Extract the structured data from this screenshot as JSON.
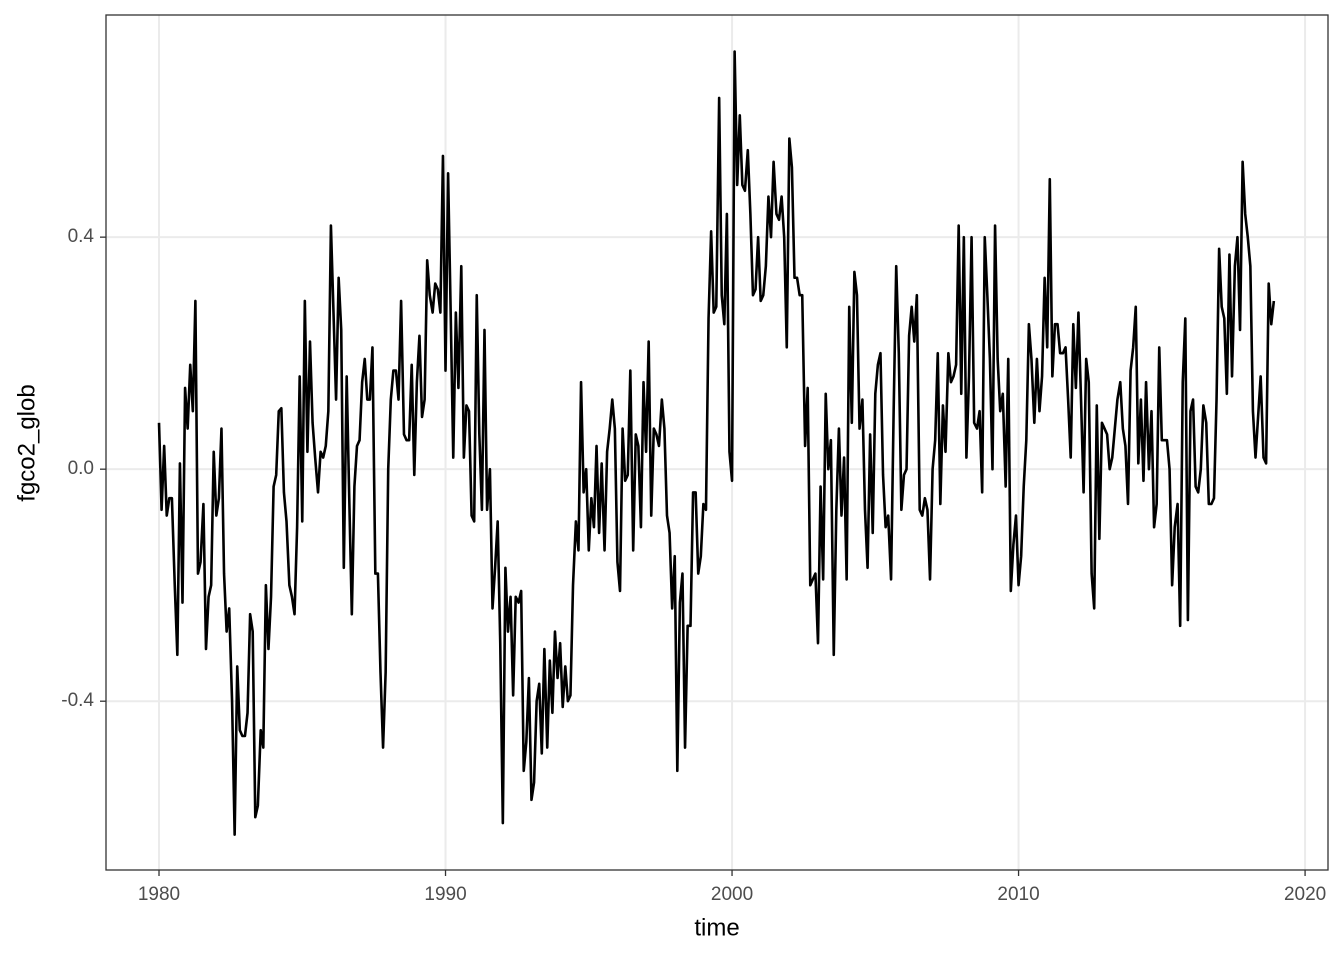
{
  "chart_data": {
    "type": "line",
    "xlabel": "time",
    "ylabel": "fgco2_glob",
    "color": "#000000",
    "grid": true,
    "xlim": [
      1978.15,
      2020.8
    ],
    "ylim": [
      -0.691,
      0.783
    ],
    "xticks": [
      1980,
      1990,
      2000,
      2010,
      2020
    ],
    "yticks": [
      -0.4,
      {
        "value": 0,
        "label": "0.0"
      },
      0.4
    ],
    "x": [
      1980,
      1980.09,
      1980.18,
      1980.27,
      1980.36,
      1980.45,
      1980.55,
      1980.64,
      1980.73,
      1980.82,
      1980.91,
      1981,
      1981.09,
      1981.18,
      1981.27,
      1981.36,
      1981.45,
      1981.55,
      1981.64,
      1981.73,
      1981.82,
      1981.91,
      1982,
      1982.09,
      1982.18,
      1982.27,
      1982.36,
      1982.45,
      1982.55,
      1982.64,
      1982.73,
      1982.82,
      1982.91,
      1983,
      1983.09,
      1983.18,
      1983.27,
      1983.36,
      1983.45,
      1983.55,
      1983.64,
      1983.73,
      1983.82,
      1983.91,
      1984,
      1984.09,
      1984.18,
      1984.27,
      1984.36,
      1984.45,
      1984.55,
      1984.64,
      1984.73,
      1984.82,
      1984.91,
      1985,
      1985.09,
      1985.18,
      1985.27,
      1985.36,
      1985.45,
      1985.55,
      1985.64,
      1985.73,
      1985.82,
      1985.91,
      1986,
      1986.09,
      1986.18,
      1986.27,
      1986.36,
      1986.45,
      1986.55,
      1986.64,
      1986.73,
      1986.82,
      1986.91,
      1987,
      1987.09,
      1987.18,
      1987.27,
      1987.36,
      1987.45,
      1987.55,
      1987.64,
      1987.73,
      1987.82,
      1987.91,
      1988,
      1988.09,
      1988.18,
      1988.27,
      1988.36,
      1988.45,
      1988.55,
      1988.64,
      1988.73,
      1988.82,
      1988.91,
      1989,
      1989.09,
      1989.18,
      1989.27,
      1989.36,
      1989.45,
      1989.55,
      1989.64,
      1989.73,
      1989.82,
      1989.91,
      1990,
      1990.09,
      1990.18,
      1990.27,
      1990.36,
      1990.45,
      1990.55,
      1990.64,
      1990.73,
      1990.82,
      1990.91,
      1991,
      1991.09,
      1991.18,
      1991.27,
      1991.36,
      1991.45,
      1991.55,
      1991.64,
      1991.73,
      1991.82,
      1991.91,
      1992,
      1992.09,
      1992.18,
      1992.27,
      1992.36,
      1992.45,
      1992.55,
      1992.64,
      1992.73,
      1992.82,
      1992.91,
      1993,
      1993.09,
      1993.18,
      1993.27,
      1993.36,
      1993.45,
      1993.55,
      1993.64,
      1993.73,
      1993.82,
      1993.91,
      1994,
      1994.09,
      1994.18,
      1994.27,
      1994.36,
      1994.45,
      1994.55,
      1994.64,
      1994.73,
      1994.82,
      1994.91,
      1995,
      1995.09,
      1995.18,
      1995.27,
      1995.36,
      1995.45,
      1995.55,
      1995.64,
      1995.73,
      1995.82,
      1995.91,
      1996,
      1996.09,
      1996.18,
      1996.27,
      1996.36,
      1996.45,
      1996.55,
      1996.64,
      1996.73,
      1996.82,
      1996.91,
      1997,
      1997.09,
      1997.18,
      1997.27,
      1997.36,
      1997.45,
      1997.55,
      1997.64,
      1997.73,
      1997.82,
      1997.91,
      1998,
      1998.09,
      1998.18,
      1998.27,
      1998.36,
      1998.45,
      1998.55,
      1998.64,
      1998.73,
      1998.82,
      1998.91,
      1999,
      1999.09,
      1999.18,
      1999.27,
      1999.36,
      1999.45,
      1999.55,
      1999.64,
      1999.73,
      1999.82,
      1999.91,
      2000,
      2000.09,
      2000.18,
      2000.27,
      2000.36,
      2000.45,
      2000.55,
      2000.64,
      2000.73,
      2000.82,
      2000.91,
      2001,
      2001.09,
      2001.18,
      2001.27,
      2001.36,
      2001.45,
      2001.55,
      2001.64,
      2001.73,
      2001.82,
      2001.91,
      2002,
      2002.09,
      2002.18,
      2002.27,
      2002.36,
      2002.45,
      2002.55,
      2002.64,
      2002.73,
      2002.82,
      2002.91,
      2003,
      2003.09,
      2003.18,
      2003.27,
      2003.36,
      2003.45,
      2003.55,
      2003.64,
      2003.73,
      2003.82,
      2003.91,
      2004,
      2004.09,
      2004.18,
      2004.27,
      2004.36,
      2004.45,
      2004.55,
      2004.64,
      2004.73,
      2004.82,
      2004.91,
      2005,
      2005.09,
      2005.18,
      2005.27,
      2005.36,
      2005.45,
      2005.55,
      2005.64,
      2005.73,
      2005.82,
      2005.91,
      2006,
      2006.09,
      2006.18,
      2006.27,
      2006.36,
      2006.45,
      2006.55,
      2006.64,
      2006.73,
      2006.82,
      2006.91,
      2007,
      2007.09,
      2007.18,
      2007.27,
      2007.36,
      2007.45,
      2007.55,
      2007.64,
      2007.73,
      2007.82,
      2007.91,
      2008,
      2008.09,
      2008.18,
      2008.27,
      2008.36,
      2008.45,
      2008.55,
      2008.64,
      2008.73,
      2008.82,
      2008.91,
      2009,
      2009.09,
      2009.18,
      2009.27,
      2009.36,
      2009.45,
      2009.55,
      2009.64,
      2009.73,
      2009.82,
      2009.91,
      2010,
      2010.09,
      2010.18,
      2010.27,
      2010.36,
      2010.45,
      2010.55,
      2010.64,
      2010.73,
      2010.82,
      2010.91,
      2011,
      2011.09,
      2011.18,
      2011.27,
      2011.36,
      2011.45,
      2011.55,
      2011.64,
      2011.73,
      2011.82,
      2011.91,
      2012,
      2012.09,
      2012.18,
      2012.27,
      2012.36,
      2012.45,
      2012.55,
      2012.64,
      2012.73,
      2012.82,
      2012.91,
      2013,
      2013.09,
      2013.18,
      2013.27,
      2013.36,
      2013.45,
      2013.55,
      2013.64,
      2013.73,
      2013.82,
      2013.91,
      2014,
      2014.09,
      2014.18,
      2014.27,
      2014.36,
      2014.45,
      2014.55,
      2014.64,
      2014.73,
      2014.82,
      2014.91,
      2015,
      2015.09,
      2015.18,
      2015.27,
      2015.36,
      2015.45,
      2015.55,
      2015.64,
      2015.73,
      2015.82,
      2015.91,
      2016,
      2016.09,
      2016.18,
      2016.27,
      2016.36,
      2016.45,
      2016.55,
      2016.64,
      2016.73,
      2016.82,
      2016.91,
      2017,
      2017.09,
      2017.18,
      2017.27,
      2017.36,
      2017.45,
      2017.55,
      2017.64,
      2017.73,
      2017.82,
      2017.91,
      2018,
      2018.09,
      2018.18,
      2018.27,
      2018.36,
      2018.45,
      2018.55,
      2018.64,
      2018.73,
      2018.82,
      2018.91
    ],
    "values": [
      0.08,
      -0.07,
      0.04,
      -0.08,
      -0.05,
      -0.05,
      -0.2,
      -0.32,
      0.01,
      -0.23,
      0.14,
      0.07,
      0.18,
      0.1,
      0.29,
      -0.18,
      -0.16,
      -0.06,
      -0.31,
      -0.22,
      -0.2,
      0.03,
      -0.08,
      -0.05,
      0.07,
      -0.18,
      -0.28,
      -0.24,
      -0.4,
      -0.63,
      -0.34,
      -0.45,
      -0.46,
      -0.46,
      -0.42,
      -0.25,
      -0.28,
      -0.6,
      -0.58,
      -0.45,
      -0.48,
      -0.2,
      -0.31,
      -0.22,
      -0.03,
      -0.01,
      0.1,
      0.105,
      -0.04,
      -0.09,
      -0.2,
      -0.22,
      -0.25,
      -0.1,
      0.16,
      -0.09,
      0.29,
      0.03,
      0.22,
      0.08,
      0.02,
      -0.04,
      0.03,
      0.02,
      0.04,
      0.1,
      0.42,
      0.27,
      0.12,
      0.33,
      0.24,
      -0.17,
      0.16,
      -0.05,
      -0.25,
      -0.03,
      0.04,
      0.05,
      0.15,
      0.19,
      0.12,
      0.12,
      0.21,
      -0.18,
      -0.18,
      -0.35,
      -0.48,
      -0.35,
      0.0,
      0.12,
      0.17,
      0.17,
      0.12,
      0.29,
      0.06,
      0.05,
      0.05,
      0.18,
      -0.01,
      0.15,
      0.23,
      0.09,
      0.12,
      0.36,
      0.3,
      0.27,
      0.32,
      0.31,
      0.27,
      0.54,
      0.17,
      0.51,
      0.27,
      0.02,
      0.27,
      0.14,
      0.35,
      0.02,
      0.11,
      0.1,
      -0.08,
      -0.09,
      0.3,
      0.06,
      -0.07,
      0.24,
      -0.07,
      0.0,
      -0.24,
      -0.17,
      -0.09,
      -0.3,
      -0.61,
      -0.17,
      -0.28,
      -0.22,
      -0.39,
      -0.22,
      -0.23,
      -0.21,
      -0.52,
      -0.47,
      -0.36,
      -0.57,
      -0.54,
      -0.4,
      -0.37,
      -0.49,
      -0.31,
      -0.48,
      -0.33,
      -0.42,
      -0.28,
      -0.36,
      -0.3,
      -0.41,
      -0.34,
      -0.4,
      -0.39,
      -0.2,
      -0.09,
      -0.14,
      0.15,
      -0.04,
      0.0,
      -0.14,
      -0.05,
      -0.1,
      0.04,
      -0.11,
      0.01,
      -0.14,
      0.03,
      0.07,
      0.12,
      0.07,
      -0.16,
      -0.21,
      0.07,
      -0.02,
      -0.01,
      0.17,
      -0.14,
      0.06,
      0.04,
      -0.1,
      0.15,
      0.03,
      0.22,
      -0.08,
      0.07,
      0.06,
      0.04,
      0.12,
      0.07,
      -0.08,
      -0.11,
      -0.24,
      -0.15,
      -0.52,
      -0.23,
      -0.18,
      -0.48,
      -0.27,
      -0.27,
      -0.04,
      -0.04,
      -0.18,
      -0.15,
      -0.06,
      -0.07,
      0.26,
      0.41,
      0.27,
      0.28,
      0.64,
      0.3,
      0.25,
      0.44,
      0.03,
      -0.02,
      0.72,
      0.49,
      0.61,
      0.49,
      0.48,
      0.55,
      0.44,
      0.3,
      0.31,
      0.4,
      0.29,
      0.3,
      0.35,
      0.47,
      0.4,
      0.53,
      0.44,
      0.43,
      0.47,
      0.4,
      0.21,
      0.57,
      0.52,
      0.33,
      0.33,
      0.3,
      0.3,
      0.04,
      0.14,
      -0.2,
      -0.19,
      -0.18,
      -0.3,
      -0.03,
      -0.19,
      0.13,
      0.0,
      0.05,
      -0.32,
      -0.07,
      0.07,
      -0.08,
      0.02,
      -0.19,
      0.28,
      0.08,
      0.34,
      0.3,
      0.07,
      0.12,
      -0.07,
      -0.17,
      0.06,
      -0.11,
      0.13,
      0.18,
      0.2,
      -0.01,
      -0.1,
      -0.08,
      -0.19,
      0.1,
      0.35,
      0.2,
      -0.07,
      -0.01,
      0.0,
      0.23,
      0.28,
      0.22,
      0.3,
      -0.07,
      -0.08,
      -0.05,
      -0.07,
      -0.19,
      0.0,
      0.05,
      0.2,
      -0.06,
      0.11,
      0.03,
      0.2,
      0.15,
      0.16,
      0.18,
      0.42,
      0.13,
      0.4,
      0.02,
      0.16,
      0.4,
      0.08,
      0.07,
      0.1,
      -0.04,
      0.4,
      0.3,
      0.19,
      0.0,
      0.42,
      0.19,
      0.1,
      0.13,
      -0.03,
      0.19,
      -0.21,
      -0.13,
      -0.08,
      -0.2,
      -0.15,
      -0.03,
      0.05,
      0.25,
      0.19,
      0.08,
      0.19,
      0.1,
      0.16,
      0.33,
      0.21,
      0.5,
      0.16,
      0.25,
      0.25,
      0.2,
      0.2,
      0.21,
      0.12,
      0.02,
      0.25,
      0.14,
      0.27,
      0.12,
      -0.04,
      0.19,
      0.15,
      -0.18,
      -0.24,
      0.11,
      -0.12,
      0.08,
      0.07,
      0.06,
      0.0,
      0.02,
      0.07,
      0.12,
      0.15,
      0.07,
      0.04,
      -0.06,
      0.17,
      0.21,
      0.28,
      0.01,
      0.12,
      -0.02,
      0.15,
      0.0,
      0.1,
      -0.1,
      -0.06,
      0.21,
      0.05,
      0.05,
      0.05,
      0.0,
      -0.2,
      -0.1,
      -0.06,
      -0.27,
      0.15,
      0.26,
      -0.26,
      0.1,
      0.12,
      -0.03,
      -0.04,
      0.0,
      0.11,
      0.08,
      -0.06,
      -0.06,
      -0.05,
      0.12,
      0.38,
      0.28,
      0.26,
      0.13,
      0.37,
      0.16,
      0.35,
      0.4,
      0.24,
      0.53,
      0.44,
      0.4,
      0.35,
      0.1,
      0.02,
      0.09,
      0.16,
      0.02,
      0.01,
      0.32,
      0.25,
      0.29
    ]
  }
}
